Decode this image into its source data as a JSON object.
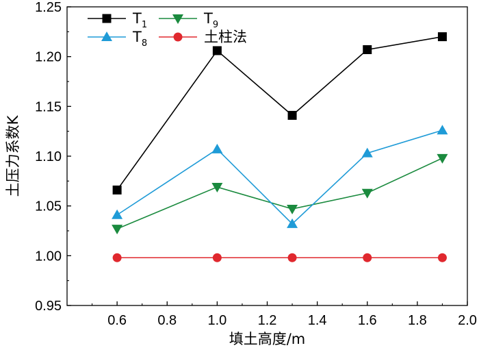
{
  "chart_data": {
    "type": "line",
    "x": [
      0.6,
      1.0,
      1.3,
      1.6,
      1.9
    ],
    "xlabel": "填土高度/m",
    "ylabel": "土压力系数K",
    "xlim": [
      0.4,
      2.0
    ],
    "ylim": [
      0.95,
      1.25
    ],
    "xticks": [
      0.6,
      0.8,
      1.0,
      1.2,
      1.4,
      1.6,
      1.8,
      2.0
    ],
    "xtick_labels": [
      "0.6",
      "0.8",
      "1.0",
      "1.2",
      "1.4",
      "1.6",
      "1.8",
      "2.0"
    ],
    "yticks": [
      0.95,
      1.0,
      1.05,
      1.1,
      1.15,
      1.2,
      1.25
    ],
    "ytick_labels": [
      "0.95",
      "1.00",
      "1.05",
      "1.10",
      "1.15",
      "1.20",
      "1.25"
    ],
    "grid": false,
    "legend_position": "top-left",
    "series": [
      {
        "name": "T",
        "subscript": "1",
        "marker": "square",
        "color": "#000000",
        "values": [
          1.066,
          1.206,
          1.141,
          1.207,
          1.22
        ]
      },
      {
        "name": "T",
        "subscript": "8",
        "marker": "triangle-up",
        "color": "#1f9bd7",
        "values": [
          1.041,
          1.107,
          1.032,
          1.103,
          1.126
        ]
      },
      {
        "name": "T",
        "subscript": "9",
        "marker": "triangle-down",
        "color": "#1a8a3e",
        "values": [
          1.027,
          1.069,
          1.047,
          1.063,
          1.098
        ]
      },
      {
        "name": "土柱法",
        "subscript": "",
        "marker": "circle",
        "color": "#e0282e",
        "values": [
          0.998,
          0.998,
          0.998,
          0.998,
          0.998
        ]
      }
    ]
  }
}
